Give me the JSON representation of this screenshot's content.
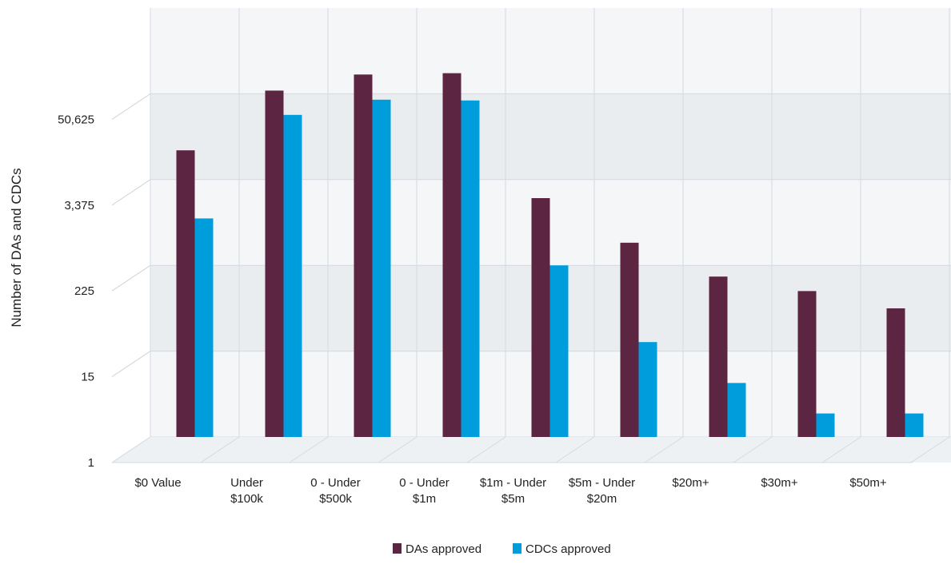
{
  "chart_data": {
    "type": "bar",
    "title": "",
    "xlabel": "",
    "ylabel": "Number of DAs and CDCs",
    "yscale": "log",
    "ylim": [
      1,
      759375
    ],
    "yticks": [
      1,
      15,
      225,
      3375,
      50625
    ],
    "ytick_labels": [
      "1",
      "15",
      "225",
      "3,375",
      "50,625"
    ],
    "categories": [
      [
        "$0 Value"
      ],
      [
        "Under",
        "$100k"
      ],
      [
        "0 - Under",
        "$500k"
      ],
      [
        "0 - Under",
        "$1m"
      ],
      [
        "$1m - Under",
        "$5m"
      ],
      [
        "$5m - Under",
        "$20m"
      ],
      [
        "$20m+"
      ],
      [
        "$30m+"
      ],
      [
        "$50m+"
      ]
    ],
    "series": [
      {
        "name": "DAs approved",
        "color": "#5c2542",
        "values": [
          8500,
          56000,
          93000,
          97000,
          1880,
          460,
          158,
          100,
          58
        ]
      },
      {
        "name": "CDCs approved",
        "color": "#009ddc",
        "values": [
          990,
          26000,
          42000,
          41000,
          225,
          20,
          5.5,
          2.1,
          2.1
        ]
      }
    ],
    "grid": true,
    "legend_position": "bottom-center"
  }
}
